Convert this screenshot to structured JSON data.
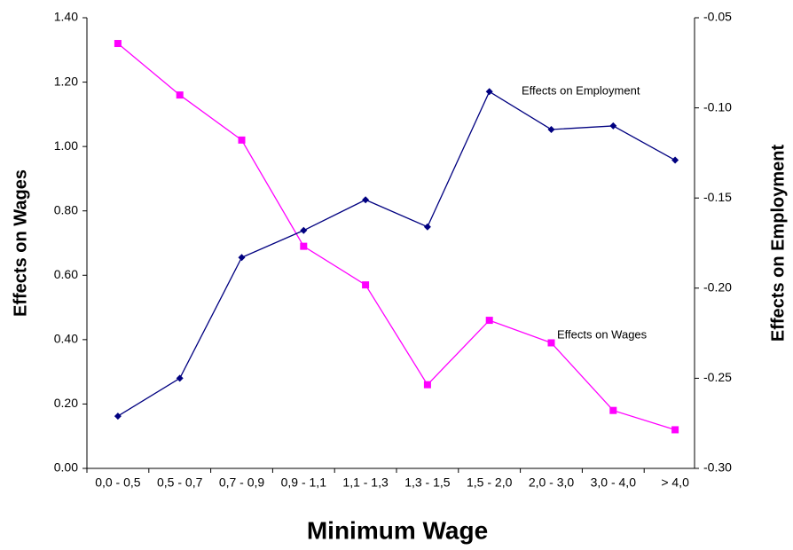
{
  "chart_data": {
    "type": "line",
    "x_label": "Minimum Wage",
    "y_label": "Effects on Wages",
    "y2_label": "Effects on Employment",
    "categories": [
      "0,0 - 0,5",
      "0,5 - 0,7",
      "0,7 - 0,9",
      "0,9 - 1,1",
      "1,1 - 1,3",
      "1,3 - 1,5",
      "1,5 - 2,0",
      "2,0 - 3,0",
      "3,0 - 4,0",
      "> 4,0"
    ],
    "series": [
      {
        "name": "Effects on Wages",
        "color": "#ff00ff",
        "marker": "square",
        "values": [
          1.32,
          1.16,
          1.02,
          0.69,
          0.57,
          0.26,
          0.46,
          0.39,
          0.18,
          0.12
        ]
      },
      {
        "name": "Effects on Employment",
        "color": "#000080",
        "marker": "diamond",
        "axis": "y2",
        "values": [
          -0.271,
          -0.25,
          -0.183,
          -0.168,
          -0.151,
          -0.166,
          -0.091,
          -0.112,
          -0.11,
          -0.129
        ]
      }
    ],
    "ylim": [
      0,
      1.4
    ],
    "yticks": [
      {
        "value": 0,
        "label": "0.00"
      },
      {
        "value": 0.2,
        "label": "0.20"
      },
      {
        "value": 0.4,
        "label": "0.40"
      },
      {
        "value": 0.6,
        "label": "0.60"
      },
      {
        "value": 0.8,
        "label": "0.80"
      },
      {
        "value": 1.0,
        "label": "1.00"
      },
      {
        "value": 1.2,
        "label": "1.20"
      },
      {
        "value": 1.4,
        "label": "1.40"
      }
    ],
    "y2lim": [
      -0.3,
      -0.05
    ],
    "y2ticks": [
      {
        "value": -0.3,
        "label": "-0.30"
      },
      {
        "value": -0.25,
        "label": "-0.25"
      },
      {
        "value": -0.2,
        "label": "-0.20"
      },
      {
        "value": -0.15,
        "label": "-0.15"
      },
      {
        "value": -0.1,
        "label": "-0.10"
      },
      {
        "value": -0.05,
        "label": "-0.05"
      }
    ],
    "grid": false
  }
}
